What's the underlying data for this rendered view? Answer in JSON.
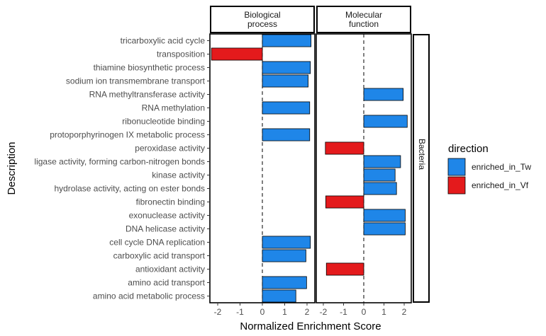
{
  "chart_data": {
    "type": "bar",
    "orientation": "horizontal",
    "xlabel": "Normalized Enrichment Score",
    "ylabel": "Description",
    "xlim": [
      -2.35,
      2.35
    ],
    "xticks": [
      "-2",
      "-1",
      "0",
      "1",
      "2"
    ],
    "xtick_values": [
      -2,
      -1,
      0,
      1,
      2
    ],
    "facet_columns": [
      "Biological\nprocess",
      "Molecular\nfunction"
    ],
    "facet_row": "Bacteria",
    "categories": [
      "tricarboxylic acid cycle",
      "transposition",
      "thiamine biosynthetic process",
      "sodium ion transmembrane transport",
      "RNA methyltransferase activity",
      "RNA methylation",
      "ribonucleotide binding",
      "protoporphyrinogen IX metabolic process",
      "peroxidase activity",
      "ligase activity, forming carbon-nitrogen bonds",
      "kinase activity",
      "hydrolase activity, acting on ester bonds",
      "fibronectin binding",
      "exonuclease activity",
      "DNA helicase activity",
      "cell cycle DNA replication",
      "carboxylic acid transport",
      "antioxidant activity",
      "amino acid transport",
      "amino acid metabolic process"
    ],
    "bars": [
      {
        "category": "tricarboxylic acid cycle",
        "panel": 0,
        "value": 2.18,
        "direction": "enriched_in_Tw"
      },
      {
        "category": "transposition",
        "panel": 0,
        "value": -2.28,
        "direction": "enriched_in_Vf"
      },
      {
        "category": "thiamine biosynthetic process",
        "panel": 0,
        "value": 2.15,
        "direction": "enriched_in_Tw"
      },
      {
        "category": "sodium ion transmembrane transport",
        "panel": 0,
        "value": 2.05,
        "direction": "enriched_in_Tw"
      },
      {
        "category": "RNA methyltransferase activity",
        "panel": 1,
        "value": 1.95,
        "direction": "enriched_in_Tw"
      },
      {
        "category": "RNA methylation",
        "panel": 0,
        "value": 2.12,
        "direction": "enriched_in_Tw"
      },
      {
        "category": "ribonucleotide binding",
        "panel": 1,
        "value": 2.15,
        "direction": "enriched_in_Tw"
      },
      {
        "category": "protoporphyrinogen IX metabolic process",
        "panel": 0,
        "value": 2.12,
        "direction": "enriched_in_Tw"
      },
      {
        "category": "peroxidase activity",
        "panel": 1,
        "value": -1.9,
        "direction": "enriched_in_Vf"
      },
      {
        "category": "ligase activity, forming carbon-nitrogen bonds",
        "panel": 1,
        "value": 1.82,
        "direction": "enriched_in_Tw"
      },
      {
        "category": "kinase activity",
        "panel": 1,
        "value": 1.55,
        "direction": "enriched_in_Tw"
      },
      {
        "category": "hydrolase activity, acting on ester bonds",
        "panel": 1,
        "value": 1.62,
        "direction": "enriched_in_Tw"
      },
      {
        "category": "fibronectin binding",
        "panel": 1,
        "value": -1.88,
        "direction": "enriched_in_Vf"
      },
      {
        "category": "exonuclease activity",
        "panel": 1,
        "value": 2.05,
        "direction": "enriched_in_Tw"
      },
      {
        "category": "DNA helicase activity",
        "panel": 1,
        "value": 2.05,
        "direction": "enriched_in_Tw"
      },
      {
        "category": "cell cycle DNA replication",
        "panel": 0,
        "value": 2.15,
        "direction": "enriched_in_Tw"
      },
      {
        "category": "carboxylic acid transport",
        "panel": 0,
        "value": 1.95,
        "direction": "enriched_in_Tw"
      },
      {
        "category": "antioxidant activity",
        "panel": 1,
        "value": -1.85,
        "direction": "enriched_in_Vf"
      },
      {
        "category": "amino acid transport",
        "panel": 0,
        "value": 1.98,
        "direction": "enriched_in_Tw"
      },
      {
        "category": "amino acid metabolic process",
        "panel": 0,
        "value": 1.5,
        "direction": "enriched_in_Tw"
      }
    ],
    "legend": {
      "title": "direction",
      "placement": "right",
      "entries": [
        {
          "label": "enriched_in_Tw",
          "color": "#1f86e8"
        },
        {
          "label": "enriched_in_Vf",
          "color": "#e41a1c"
        }
      ]
    },
    "grid": false,
    "reference_line": {
      "value": 0,
      "style": "dashed"
    }
  }
}
